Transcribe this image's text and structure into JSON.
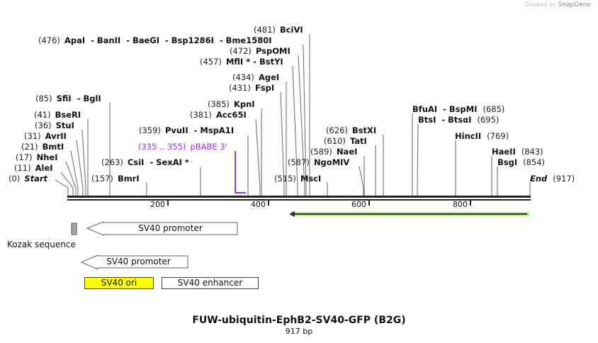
{
  "credit": {
    "prefix": "Created by",
    "brand": "SnapGene"
  },
  "title": "FUW-ubiquitin-EphB2-SV40-GFP (B2G)",
  "length": "917 bp",
  "sites": [
    {
      "pos": "(0)",
      "name": "Start"
    },
    {
      "pos": "(11)",
      "name": "AleI"
    },
    {
      "pos": "(17)",
      "name": "NheI"
    },
    {
      "pos": "(21)",
      "name": "BmtI"
    },
    {
      "pos": "(31)",
      "name": "AvrII"
    },
    {
      "pos": "(36)",
      "name": "StuI"
    },
    {
      "pos": "(41)",
      "name": "BseRI"
    },
    {
      "pos": "(85)",
      "name": "SfiI  - BglI"
    },
    {
      "pos": "(157)",
      "name": "BmrI"
    },
    {
      "pos": "(263)",
      "name": "CsiI  - SexAI *"
    },
    {
      "pos": "(335 .. 355)",
      "name": "pBABE 3'"
    },
    {
      "pos": "(359)",
      "name": "PvuII  - MspA1I"
    },
    {
      "pos": "(381)",
      "name": "Acc65I"
    },
    {
      "pos": "(385)",
      "name": "KpnI"
    },
    {
      "pos": "(431)",
      "name": "FspI"
    },
    {
      "pos": "(434)",
      "name": "AgeI"
    },
    {
      "pos": "(457)",
      "name": "MflI * - BstYI"
    },
    {
      "pos": "(472)",
      "name": "PspOMI"
    },
    {
      "pos": "(476)",
      "name": "ApaI  - BanII  - BaeGI  - Bsp1286I  - Bme1580I"
    },
    {
      "pos": "(481)",
      "name": "BciVI"
    },
    {
      "pos": "(515)",
      "name": "MscI"
    },
    {
      "pos": "(587)",
      "name": "NgoMIV"
    },
    {
      "pos": "(589)",
      "name": "NaeI"
    },
    {
      "pos": "(610)",
      "name": "TatI"
    },
    {
      "pos": "(626)",
      "name": "BstXI"
    },
    {
      "pos": "(685)",
      "name": "BfuAI  - BspMI"
    },
    {
      "pos": "(695)",
      "name": "BtsI  - BtsαI"
    },
    {
      "pos": "(769)",
      "name": "HincII"
    },
    {
      "pos": "(843)",
      "name": "HaeII"
    },
    {
      "pos": "(854)",
      "name": "BsgI"
    },
    {
      "pos": "(917)",
      "name": "End"
    }
  ],
  "ruler": [
    "200",
    "400",
    "600",
    "800"
  ],
  "features": {
    "sv40_promoter_1": "SV40 promoter",
    "kozak": "Kozak sequence",
    "sv40_promoter_2": "SV40 promoter",
    "sv40_ori": "SV40 ori",
    "sv40_enhancer": "SV40 enhancer"
  },
  "colors": {
    "primer": "#9b30ff",
    "ori": "#ffff00",
    "orf_glow": "#b5f07a",
    "kozak": "#a0a4ab"
  }
}
